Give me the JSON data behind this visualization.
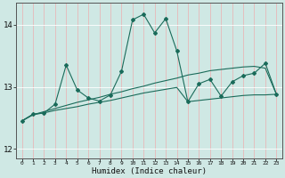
{
  "xlabel": "Humidex (Indice chaleur)",
  "background_color": "#cfe8e4",
  "grid_color": "#e8c8c8",
  "line_color": "#1a6b5a",
  "x_data": [
    0,
    1,
    2,
    3,
    4,
    5,
    6,
    7,
    8,
    9,
    10,
    11,
    12,
    13,
    14,
    15,
    16,
    17,
    18,
    19,
    20,
    21,
    22,
    23
  ],
  "line1": [
    12.45,
    12.56,
    12.58,
    12.72,
    13.35,
    12.95,
    12.82,
    12.77,
    12.87,
    13.25,
    14.08,
    14.17,
    13.87,
    14.1,
    13.58,
    12.76,
    13.05,
    13.12,
    12.85,
    13.08,
    13.18,
    13.22,
    13.38,
    12.88
  ],
  "line2": [
    12.45,
    12.55,
    12.6,
    12.65,
    12.7,
    12.75,
    12.79,
    12.83,
    12.88,
    12.92,
    12.97,
    13.01,
    13.06,
    13.1,
    13.14,
    13.19,
    13.22,
    13.26,
    13.28,
    13.3,
    13.32,
    13.33,
    13.3,
    12.88
  ],
  "line3": [
    12.45,
    12.55,
    12.58,
    12.62,
    12.65,
    12.68,
    12.72,
    12.75,
    12.78,
    12.82,
    12.86,
    12.9,
    12.93,
    12.96,
    12.99,
    12.76,
    12.78,
    12.8,
    12.82,
    12.84,
    12.86,
    12.87,
    12.87,
    12.88
  ],
  "ylim": [
    11.85,
    14.35
  ],
  "yticks": [
    12,
    13,
    14
  ],
  "xlim": [
    -0.5,
    23.5
  ],
  "figsize": [
    3.2,
    2.0
  ],
  "dpi": 100
}
